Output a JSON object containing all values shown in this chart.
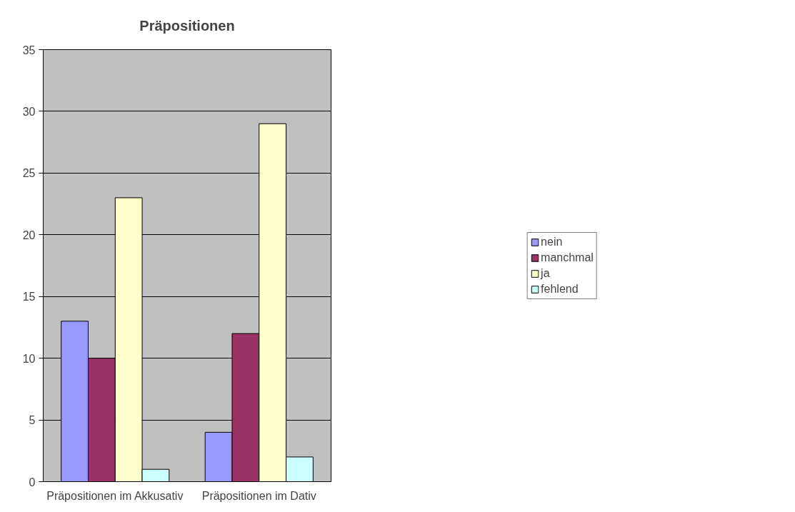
{
  "chart_data": {
    "type": "bar",
    "title": "Präpositionen",
    "categories": [
      "Präpositionen im Akkusativ",
      "Präpositionen im Dativ"
    ],
    "series": [
      {
        "name": "nein",
        "color": "#9999ff",
        "values": [
          13,
          4
        ]
      },
      {
        "name": "manchmal",
        "color": "#993366",
        "values": [
          10,
          12
        ]
      },
      {
        "name": "ja",
        "color": "#ffffcc",
        "values": [
          23,
          29
        ]
      },
      {
        "name": "fehlend",
        "color": "#ccffff",
        "values": [
          1,
          2
        ]
      }
    ],
    "ylim": [
      0,
      35
    ],
    "yticks": [
      0,
      5,
      10,
      15,
      20,
      25,
      30,
      35
    ],
    "grid": "y",
    "legend": "right"
  }
}
